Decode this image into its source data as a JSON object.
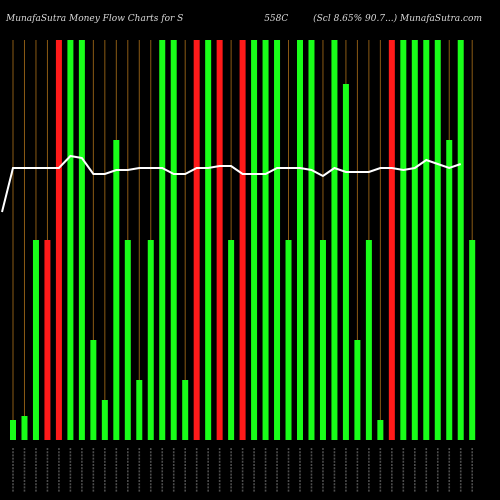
{
  "header": {
    "title_left": "MunafaSutra  Money Flow  Charts for S",
    "title_mid": "558C",
    "title_right": "(Scl 8.65%  90.7...)  MunafaSutra.com"
  },
  "colors": {
    "background": "#000000",
    "grid": "#8a5a14",
    "up": "#19ff19",
    "down": "#ff1a1a",
    "line": "#ffffff",
    "label": "#8c8c8c"
  },
  "chart_data": {
    "type": "bar",
    "y_range": [
      0,
      100
    ],
    "bars": [
      {
        "value": 5,
        "color": "up"
      },
      {
        "value": 6,
        "color": "up"
      },
      {
        "value": 50,
        "color": "up"
      },
      {
        "value": 50,
        "color": "down"
      },
      {
        "value": 100,
        "color": "down"
      },
      {
        "value": 100,
        "color": "up"
      },
      {
        "value": 100,
        "color": "up"
      },
      {
        "value": 25,
        "color": "up"
      },
      {
        "value": 10,
        "color": "up"
      },
      {
        "value": 75,
        "color": "up"
      },
      {
        "value": 50,
        "color": "up"
      },
      {
        "value": 15,
        "color": "up"
      },
      {
        "value": 50,
        "color": "up"
      },
      {
        "value": 100,
        "color": "up"
      },
      {
        "value": 100,
        "color": "up"
      },
      {
        "value": 15,
        "color": "up"
      },
      {
        "value": 100,
        "color": "down"
      },
      {
        "value": 100,
        "color": "up"
      },
      {
        "value": 100,
        "color": "down"
      },
      {
        "value": 50,
        "color": "up"
      },
      {
        "value": 100,
        "color": "down"
      },
      {
        "value": 100,
        "color": "up"
      },
      {
        "value": 100,
        "color": "up"
      },
      {
        "value": 100,
        "color": "up"
      },
      {
        "value": 50,
        "color": "up"
      },
      {
        "value": 100,
        "color": "up"
      },
      {
        "value": 100,
        "color": "up"
      },
      {
        "value": 50,
        "color": "up"
      },
      {
        "value": 100,
        "color": "up"
      },
      {
        "value": 89,
        "color": "up"
      },
      {
        "value": 25,
        "color": "up"
      },
      {
        "value": 50,
        "color": "up"
      },
      {
        "value": 5,
        "color": "up"
      },
      {
        "value": 100,
        "color": "down"
      },
      {
        "value": 100,
        "color": "up"
      },
      {
        "value": 100,
        "color": "up"
      },
      {
        "value": 100,
        "color": "up"
      },
      {
        "value": 100,
        "color": "up"
      },
      {
        "value": 75,
        "color": "up"
      },
      {
        "value": 100,
        "color": "up"
      },
      {
        "value": 50,
        "color": "up"
      }
    ],
    "line": [
      32,
      32,
      32,
      32,
      32,
      29,
      29.5,
      33.5,
      33.5,
      32.5,
      32.5,
      32,
      32,
      32,
      33.5,
      33.5,
      32,
      32,
      31.5,
      31.5,
      33.5,
      33.5,
      33.5,
      32,
      32,
      32,
      32.5,
      34,
      32,
      33,
      33,
      33,
      32,
      32,
      32.5,
      32,
      30,
      31,
      32,
      31
    ],
    "line_start": 0,
    "line_start_x": 2,
    "line_start_y": 57
  }
}
